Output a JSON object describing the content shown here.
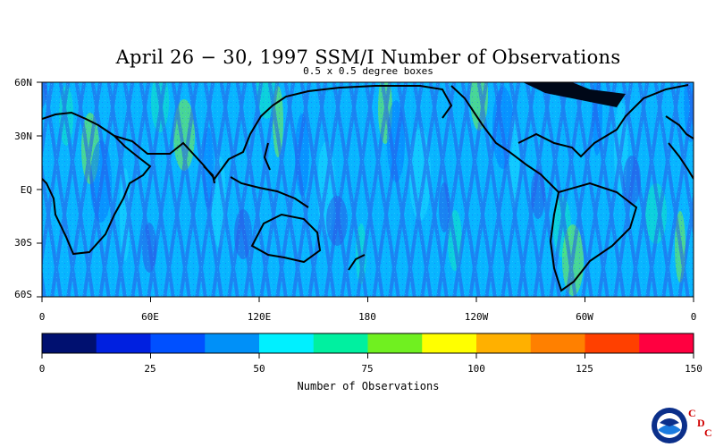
{
  "title": "April 26 − 30, 1997 SSM/I Number of Observations",
  "subtitle": "0.5 x 0.5 degree boxes",
  "lat_labels": [
    "60N",
    "30N",
    "EQ",
    "30S",
    "60S"
  ],
  "lon_labels": [
    "0",
    "60E",
    "120E",
    "180",
    "120W",
    "60W",
    "0"
  ],
  "colorbar": {
    "title": "Number of Observations",
    "tick_labels": [
      "0",
      "25",
      "50",
      "75",
      "100",
      "125",
      "150"
    ],
    "range": [
      0,
      150
    ],
    "colors": [
      "#001070",
      "#0020e0",
      "#0050ff",
      "#0090f8",
      "#00f0ff",
      "#00f0a0",
      "#70f020",
      "#ffff00",
      "#ffb000",
      "#ff8000",
      "#ff4000",
      "#ff0040"
    ]
  },
  "logo": {
    "text": "NOAA",
    "letters": [
      "C",
      "D",
      "C"
    ]
  }
}
